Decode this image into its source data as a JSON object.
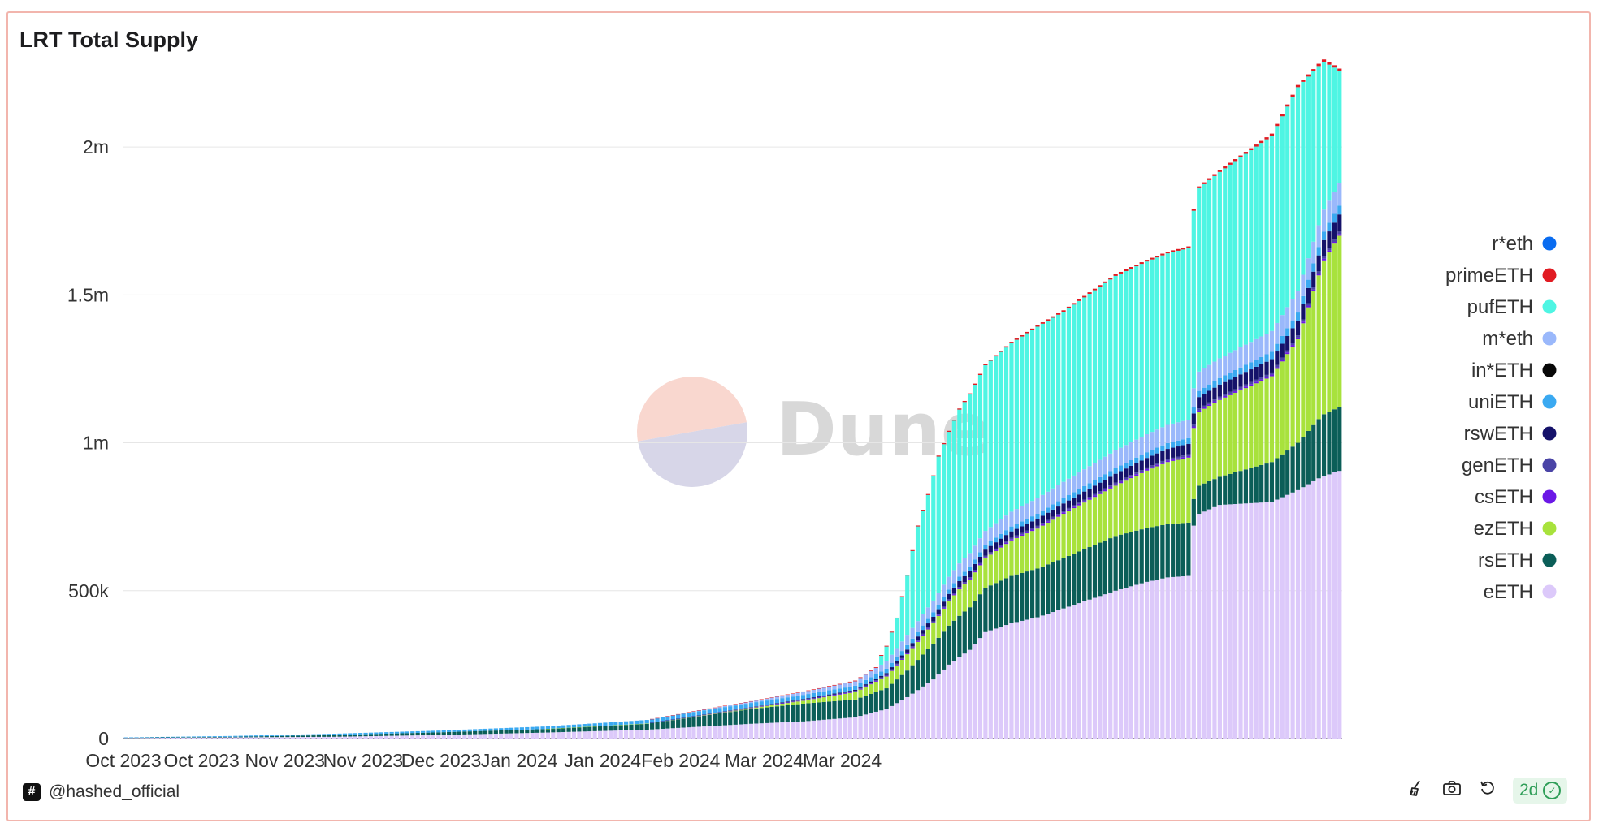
{
  "chart_data": {
    "type": "bar",
    "stacked": true,
    "title": "LRT Total Supply",
    "xlabel": "",
    "ylabel": "",
    "ylim": [
      0,
      2250000
    ],
    "y_ticks": [
      0,
      500000,
      1000000,
      1500000,
      2000000
    ],
    "y_tick_labels": [
      "0",
      "500k",
      "1m",
      "1.5m",
      "2m"
    ],
    "x_tick_labels": [
      "Oct 2023",
      "Oct 2023",
      "Nov 2023",
      "Nov 2023",
      "Dec 2023",
      "Jan 2024",
      "Jan 2024",
      "Feb 2024",
      "Mar 2024",
      "Mar 2024"
    ],
    "x_tick_dates": [
      "2023-10-01",
      "2023-10-16",
      "2023-11-01",
      "2023-11-16",
      "2023-12-01",
      "2023-12-16",
      "2024-01-01",
      "2024-01-16",
      "2024-02-01",
      "2024-02-16"
    ],
    "start_date": "2023-10-01",
    "legend_position": "right",
    "grid": true,
    "watermark": "Dune",
    "series_order_bottom_to_top": [
      "eETH",
      "rsETH",
      "ezETH",
      "csETH",
      "genETH",
      "rswETH",
      "uniETH",
      "in*ETH",
      "m*eth",
      "pufETH",
      "primeETH",
      "r*eth"
    ],
    "legend": [
      {
        "name": "r*eth",
        "color": "#0a6cf0"
      },
      {
        "name": "primeETH",
        "color": "#e11b22"
      },
      {
        "name": "pufETH",
        "color": "#4ef5e3"
      },
      {
        "name": "m*eth",
        "color": "#9ab8fb"
      },
      {
        "name": "in*ETH",
        "color": "#080808"
      },
      {
        "name": "uniETH",
        "color": "#3aa9f1"
      },
      {
        "name": "rswETH",
        "color": "#15126a"
      },
      {
        "name": "genETH",
        "color": "#4a44a6"
      },
      {
        "name": "csETH",
        "color": "#6b18e6"
      },
      {
        "name": "ezETH",
        "color": "#a8e23c"
      },
      {
        "name": "rsETH",
        "color": "#0b5e58"
      },
      {
        "name": "eETH",
        "color": "#dcc9fa"
      }
    ],
    "series": [
      {
        "name": "eETH",
        "keyframes": [
          [
            0,
            2000
          ],
          [
            20,
            4000
          ],
          [
            40,
            6000
          ],
          [
            60,
            12000
          ],
          [
            80,
            20000
          ],
          [
            100,
            30000
          ],
          [
            110,
            40000
          ],
          [
            120,
            50000
          ],
          [
            130,
            58000
          ],
          [
            140,
            72000
          ],
          [
            146,
            100000
          ],
          [
            150,
            140000
          ],
          [
            155,
            200000
          ],
          [
            158,
            250000
          ],
          [
            162,
            300000
          ],
          [
            165,
            360000
          ],
          [
            170,
            390000
          ],
          [
            175,
            410000
          ],
          [
            180,
            440000
          ],
          [
            185,
            470000
          ],
          [
            190,
            500000
          ],
          [
            196,
            530000
          ],
          [
            200,
            545000
          ],
          [
            204,
            550000
          ],
          [
            205,
            720000
          ],
          [
            206,
            760000
          ],
          [
            210,
            790000
          ],
          [
            220,
            800000
          ],
          [
            225,
            840000
          ],
          [
            229,
            880000
          ],
          [
            232,
            900000
          ],
          [
            233,
            905000
          ]
        ]
      },
      {
        "name": "rsETH",
        "keyframes": [
          [
            0,
            1000
          ],
          [
            20,
            2000
          ],
          [
            40,
            6000
          ],
          [
            60,
            9000
          ],
          [
            80,
            12000
          ],
          [
            100,
            20000
          ],
          [
            110,
            35000
          ],
          [
            120,
            50000
          ],
          [
            130,
            60000
          ],
          [
            140,
            60000
          ],
          [
            146,
            70000
          ],
          [
            150,
            90000
          ],
          [
            155,
            120000
          ],
          [
            160,
            140000
          ],
          [
            165,
            150000
          ],
          [
            170,
            160000
          ],
          [
            180,
            170000
          ],
          [
            190,
            185000
          ],
          [
            200,
            180000
          ],
          [
            204,
            180000
          ],
          [
            205,
            90000
          ],
          [
            206,
            95000
          ],
          [
            210,
            95000
          ],
          [
            220,
            135000
          ],
          [
            225,
            160000
          ],
          [
            230,
            210000
          ],
          [
            233,
            215000
          ]
        ]
      },
      {
        "name": "ezETH",
        "keyframes": [
          [
            0,
            0
          ],
          [
            80,
            0
          ],
          [
            100,
            1000
          ],
          [
            120,
            3000
          ],
          [
            130,
            10000
          ],
          [
            140,
            25000
          ],
          [
            146,
            40000
          ],
          [
            150,
            55000
          ],
          [
            155,
            70000
          ],
          [
            160,
            90000
          ],
          [
            165,
            100000
          ],
          [
            170,
            120000
          ],
          [
            180,
            150000
          ],
          [
            190,
            170000
          ],
          [
            200,
            210000
          ],
          [
            204,
            220000
          ],
          [
            205,
            240000
          ],
          [
            206,
            250000
          ],
          [
            210,
            260000
          ],
          [
            220,
            290000
          ],
          [
            225,
            350000
          ],
          [
            230,
            520000
          ],
          [
            233,
            580000
          ]
        ]
      },
      {
        "name": "csETH",
        "keyframes": [
          [
            0,
            0
          ],
          [
            100,
            0
          ],
          [
            120,
            1000
          ],
          [
            150,
            3000
          ],
          [
            180,
            5000
          ],
          [
            204,
            5000
          ],
          [
            233,
            6000
          ]
        ]
      },
      {
        "name": "genETH",
        "keyframes": [
          [
            0,
            0
          ],
          [
            100,
            0
          ],
          [
            120,
            1000
          ],
          [
            150,
            3000
          ],
          [
            180,
            5000
          ],
          [
            204,
            6000
          ],
          [
            233,
            8000
          ]
        ]
      },
      {
        "name": "rswETH",
        "keyframes": [
          [
            0,
            0
          ],
          [
            100,
            0
          ],
          [
            140,
            3000
          ],
          [
            146,
            6000
          ],
          [
            150,
            10000
          ],
          [
            155,
            15000
          ],
          [
            160,
            20000
          ],
          [
            170,
            22000
          ],
          [
            180,
            25000
          ],
          [
            190,
            30000
          ],
          [
            204,
            35000
          ],
          [
            205,
            38000
          ],
          [
            220,
            45000
          ],
          [
            230,
            55000
          ],
          [
            233,
            58000
          ]
        ]
      },
      {
        "name": "uniETH",
        "keyframes": [
          [
            0,
            1000
          ],
          [
            60,
            6000
          ],
          [
            90,
            10000
          ],
          [
            100,
            12000
          ],
          [
            110,
            14000
          ],
          [
            120,
            14000
          ],
          [
            140,
            14000
          ],
          [
            150,
            15000
          ],
          [
            160,
            15000
          ],
          [
            180,
            18000
          ],
          [
            204,
            20000
          ],
          [
            233,
            30000
          ]
        ]
      },
      {
        "name": "in*ETH",
        "keyframes": [
          [
            0,
            0
          ],
          [
            233,
            0
          ]
        ]
      },
      {
        "name": "m*eth",
        "keyframes": [
          [
            0,
            0
          ],
          [
            100,
            0
          ],
          [
            120,
            5000
          ],
          [
            140,
            15000
          ],
          [
            146,
            25000
          ],
          [
            150,
            35000
          ],
          [
            155,
            40000
          ],
          [
            160,
            45000
          ],
          [
            170,
            50000
          ],
          [
            180,
            55000
          ],
          [
            190,
            60000
          ],
          [
            204,
            62000
          ],
          [
            205,
            65000
          ],
          [
            220,
            70000
          ],
          [
            233,
            75000
          ]
        ]
      },
      {
        "name": "pufETH",
        "keyframes": [
          [
            0,
            0
          ],
          [
            144,
            0
          ],
          [
            145,
            30000
          ],
          [
            146,
            50000
          ],
          [
            148,
            100000
          ],
          [
            150,
            200000
          ],
          [
            152,
            320000
          ],
          [
            154,
            380000
          ],
          [
            156,
            460000
          ],
          [
            160,
            520000
          ],
          [
            165,
            560000
          ],
          [
            170,
            570000
          ],
          [
            175,
            580000
          ],
          [
            180,
            575000
          ],
          [
            190,
            590000
          ],
          [
            200,
            580000
          ],
          [
            204,
            580000
          ],
          [
            205,
            600000
          ],
          [
            206,
            620000
          ],
          [
            210,
            630000
          ],
          [
            220,
            660000
          ],
          [
            225,
            690000
          ],
          [
            230,
            500000
          ],
          [
            233,
            380000
          ]
        ]
      },
      {
        "name": "primeETH",
        "keyframes": [
          [
            0,
            0
          ],
          [
            100,
            0
          ],
          [
            120,
            1000
          ],
          [
            150,
            3000
          ],
          [
            180,
            5000
          ],
          [
            204,
            6000
          ],
          [
            233,
            8000
          ]
        ]
      },
      {
        "name": "r*eth",
        "keyframes": [
          [
            0,
            0
          ],
          [
            233,
            0
          ]
        ]
      }
    ]
  },
  "footer": {
    "author": "@hashed_official",
    "hash_icon": "#",
    "refresh_badge": "2d",
    "icons": [
      "broom-icon",
      "camera-icon",
      "refresh-icon",
      "check-circle-icon"
    ]
  }
}
